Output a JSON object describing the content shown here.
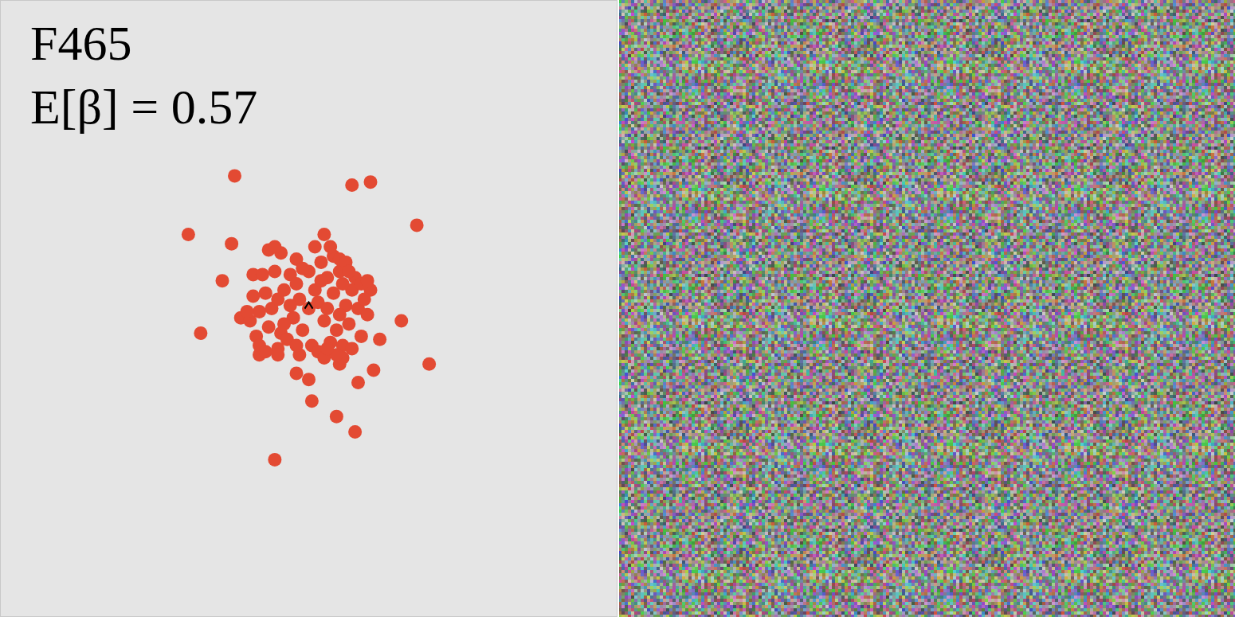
{
  "chart_data": {
    "type": "scatter",
    "title": "F465",
    "subtitle": "E[β] = 0.57",
    "xlim": [
      -1,
      1
    ],
    "ylim": [
      -1,
      1
    ],
    "tick_labels": false,
    "grid": false,
    "series": [
      {
        "type": "scatter",
        "color": "#e34a33",
        "marker": "circle",
        "x": [
          -0.24,
          0.14,
          0.2,
          0.35,
          -0.39,
          -0.25,
          0.05,
          -0.28,
          0.2,
          0.3,
          -0.35,
          0.23,
          0.39,
          0.21,
          0.16,
          -0.04,
          0.0,
          0.01,
          0.09,
          0.15,
          -0.11,
          -0.18,
          -0.22,
          -0.16,
          0.1,
          0.11,
          0,
          0.03,
          -0.03,
          0.05,
          -0.05,
          0.08,
          -0.08,
          0.09,
          -0.09,
          0.12,
          -0.12,
          0.0,
          0.01,
          0.06,
          -0.06,
          0.07,
          -0.07,
          0.14,
          -0.14,
          0.13,
          -0.13,
          0.04,
          -0.04,
          0.03,
          -0.03,
          0.1,
          -0.11,
          0.11,
          -0.1,
          0.16,
          -0.16,
          0.02,
          -0.02,
          0.06,
          -0.06,
          0.15,
          -0.15,
          0.17,
          -0.17,
          0.08,
          -0.09,
          -0.13,
          -0.11,
          0.02,
          0.07,
          0.1,
          0.12,
          0.18,
          0.19,
          0.17,
          -0.18,
          -0.19,
          -0.16,
          -0.14,
          -0.1,
          0.05,
          0.09,
          0.14,
          -0.04,
          0.04,
          -0.04,
          0.1,
          -0.1,
          0.13,
          -0.2,
          0.19,
          0.06,
          -0.02,
          0.11,
          -0.08
        ],
        "values": [
          0.43,
          0.4,
          0.41,
          0.27,
          0.24,
          0.21,
          0.24,
          0.09,
          0.06,
          -0.04,
          -0.08,
          -0.1,
          -0.18,
          -0.2,
          -0.24,
          -0.21,
          -0.23,
          -0.3,
          -0.35,
          -0.4,
          -0.49,
          0.11,
          -0.03,
          -0.15,
          -0.18,
          -0.16,
          0,
          0.02,
          0.03,
          -0.04,
          -0.03,
          0.05,
          0.06,
          -0.07,
          -0.08,
          0.01,
          0.0,
          0.12,
          -0.12,
          0.1,
          0.11,
          -0.11,
          -0.1,
          0.06,
          0.05,
          -0.05,
          -0.06,
          0.15,
          0.16,
          -0.14,
          -0.15,
          0.12,
          0.12,
          -0.12,
          -0.13,
          0.0,
          -0.01,
          0.06,
          -0.07,
          0.0,
          0.01,
          0.1,
          0.11,
          -0.09,
          -0.09,
          0.17,
          0.18,
          0.19,
          0.2,
          0.2,
          0.2,
          0.16,
          0.15,
          0.03,
          -0.02,
          0.08,
          0.04,
          -0.04,
          -0.12,
          -0.14,
          -0.15,
          -0.16,
          -0.15,
          -0.13,
          -0.12,
          0.09,
          0.08,
          -0.02,
          0.03,
          0.12,
          -0.01,
          0.09,
          -0.13,
          0.13,
          0.08,
          -0.05
        ]
      },
      {
        "type": "scatter",
        "color": "#000000",
        "marker": "caret",
        "x": [
          0.0
        ],
        "values": [
          0.01
        ]
      }
    ]
  }
}
